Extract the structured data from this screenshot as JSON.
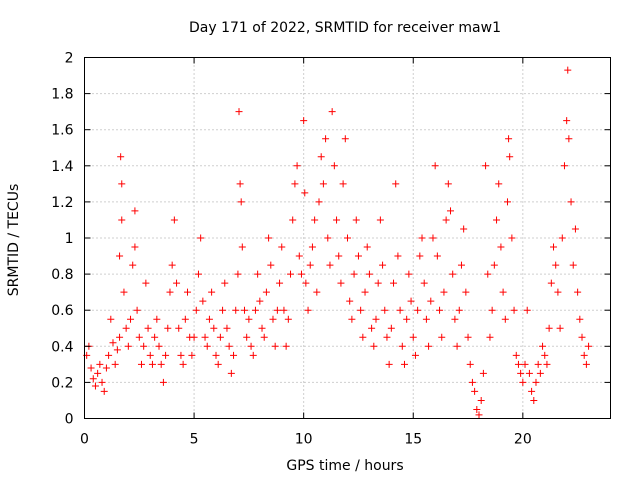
{
  "chart_data": {
    "type": "scatter",
    "title": "Day 171 of 2022, SRMTID for receiver maw1",
    "xlabel": "GPS time / hours",
    "ylabel": "SRMTID / TECUs",
    "xlim": [
      0,
      24
    ],
    "ylim": [
      0,
      2
    ],
    "x_ticks": [
      0,
      5,
      10,
      15,
      20
    ],
    "x_tick_labels": [
      "0",
      "5",
      "10",
      "15",
      "20"
    ],
    "y_ticks": [
      0,
      0.2,
      0.4,
      0.6,
      0.8,
      1,
      1.2,
      1.4,
      1.6,
      1.8,
      2
    ],
    "y_tick_labels": [
      "0",
      "0.2",
      "0.4",
      "0.6",
      "0.8",
      "1",
      "1.2",
      "1.4",
      "1.6",
      "1.8",
      "2"
    ],
    "grid": true,
    "marker": "+",
    "color": "#ff0000",
    "series": [
      {
        "name": "SRMTID",
        "points": [
          [
            0.1,
            0.35
          ],
          [
            0.2,
            0.4
          ],
          [
            0.3,
            0.28
          ],
          [
            0.4,
            0.22
          ],
          [
            0.5,
            0.18
          ],
          [
            0.6,
            0.25
          ],
          [
            0.7,
            0.3
          ],
          [
            0.8,
            0.2
          ],
          [
            0.9,
            0.15
          ],
          [
            1.0,
            0.28
          ],
          [
            1.1,
            0.35
          ],
          [
            1.2,
            0.55
          ],
          [
            1.3,
            0.42
          ],
          [
            1.4,
            0.3
          ],
          [
            1.5,
            0.38
          ],
          [
            1.6,
            0.45
          ],
          [
            1.6,
            0.9
          ],
          [
            1.65,
            1.45
          ],
          [
            1.7,
            1.3
          ],
          [
            1.7,
            1.1
          ],
          [
            1.8,
            0.7
          ],
          [
            1.9,
            0.5
          ],
          [
            2.0,
            0.4
          ],
          [
            2.1,
            0.55
          ],
          [
            2.2,
            0.85
          ],
          [
            2.3,
            1.15
          ],
          [
            2.3,
            0.95
          ],
          [
            2.4,
            0.6
          ],
          [
            2.5,
            0.45
          ],
          [
            2.6,
            0.3
          ],
          [
            2.7,
            0.4
          ],
          [
            2.8,
            0.75
          ],
          [
            2.9,
            0.5
          ],
          [
            3.0,
            0.35
          ],
          [
            3.1,
            0.3
          ],
          [
            3.2,
            0.45
          ],
          [
            3.3,
            0.55
          ],
          [
            3.4,
            0.4
          ],
          [
            3.5,
            0.3
          ],
          [
            3.6,
            0.2
          ],
          [
            3.7,
            0.35
          ],
          [
            3.8,
            0.5
          ],
          [
            3.9,
            0.7
          ],
          [
            4.0,
            0.85
          ],
          [
            4.1,
            1.1
          ],
          [
            4.2,
            0.75
          ],
          [
            4.3,
            0.5
          ],
          [
            4.4,
            0.35
          ],
          [
            4.5,
            0.3
          ],
          [
            4.6,
            0.55
          ],
          [
            4.7,
            0.7
          ],
          [
            4.8,
            0.45
          ],
          [
            4.9,
            0.35
          ],
          [
            5.0,
            0.45
          ],
          [
            5.1,
            0.6
          ],
          [
            5.2,
            0.8
          ],
          [
            5.3,
            1.0
          ],
          [
            5.4,
            0.65
          ],
          [
            5.5,
            0.45
          ],
          [
            5.6,
            0.4
          ],
          [
            5.7,
            0.55
          ],
          [
            5.8,
            0.7
          ],
          [
            5.9,
            0.5
          ],
          [
            6.0,
            0.35
          ],
          [
            6.1,
            0.3
          ],
          [
            6.2,
            0.45
          ],
          [
            6.3,
            0.6
          ],
          [
            6.4,
            0.75
          ],
          [
            6.5,
            0.5
          ],
          [
            6.6,
            0.4
          ],
          [
            6.7,
            0.25
          ],
          [
            6.8,
            0.35
          ],
          [
            6.9,
            0.6
          ],
          [
            7.0,
            0.8
          ],
          [
            7.05,
            1.7
          ],
          [
            7.1,
            1.3
          ],
          [
            7.15,
            1.2
          ],
          [
            7.2,
            0.95
          ],
          [
            7.3,
            0.6
          ],
          [
            7.4,
            0.45
          ],
          [
            7.5,
            0.55
          ],
          [
            7.6,
            0.4
          ],
          [
            7.7,
            0.35
          ],
          [
            7.8,
            0.6
          ],
          [
            7.9,
            0.8
          ],
          [
            8.0,
            0.65
          ],
          [
            8.1,
            0.5
          ],
          [
            8.2,
            0.45
          ],
          [
            8.3,
            0.7
          ],
          [
            8.4,
            1.0
          ],
          [
            8.5,
            0.85
          ],
          [
            8.6,
            0.55
          ],
          [
            8.7,
            0.4
          ],
          [
            8.8,
            0.6
          ],
          [
            8.9,
            0.75
          ],
          [
            9.0,
            0.95
          ],
          [
            9.1,
            0.6
          ],
          [
            9.2,
            0.4
          ],
          [
            9.3,
            0.55
          ],
          [
            9.4,
            0.8
          ],
          [
            9.5,
            1.1
          ],
          [
            9.6,
            1.3
          ],
          [
            9.7,
            1.4
          ],
          [
            9.8,
            0.9
          ],
          [
            9.9,
            0.8
          ],
          [
            10.0,
            1.65
          ],
          [
            10.05,
            1.25
          ],
          [
            10.1,
            0.75
          ],
          [
            10.2,
            0.6
          ],
          [
            10.3,
            0.85
          ],
          [
            10.4,
            0.95
          ],
          [
            10.5,
            1.1
          ],
          [
            10.6,
            0.7
          ],
          [
            10.7,
            1.2
          ],
          [
            10.8,
            1.45
          ],
          [
            10.9,
            1.3
          ],
          [
            11.0,
            1.55
          ],
          [
            11.1,
            1.0
          ],
          [
            11.2,
            0.85
          ],
          [
            11.3,
            1.7
          ],
          [
            11.4,
            1.4
          ],
          [
            11.5,
            1.1
          ],
          [
            11.6,
            0.9
          ],
          [
            11.7,
            0.75
          ],
          [
            11.8,
            1.3
          ],
          [
            11.9,
            1.55
          ],
          [
            12.0,
            1.0
          ],
          [
            12.1,
            0.65
          ],
          [
            12.2,
            0.55
          ],
          [
            12.3,
            0.8
          ],
          [
            12.4,
            1.1
          ],
          [
            12.5,
            0.9
          ],
          [
            12.6,
            0.6
          ],
          [
            12.7,
            0.45
          ],
          [
            12.8,
            0.7
          ],
          [
            12.9,
            0.95
          ],
          [
            13.0,
            0.8
          ],
          [
            13.1,
            0.5
          ],
          [
            13.2,
            0.4
          ],
          [
            13.3,
            0.55
          ],
          [
            13.4,
            0.75
          ],
          [
            13.5,
            1.1
          ],
          [
            13.6,
            0.85
          ],
          [
            13.7,
            0.6
          ],
          [
            13.8,
            0.45
          ],
          [
            13.9,
            0.3
          ],
          [
            14.0,
            0.5
          ],
          [
            14.1,
            0.75
          ],
          [
            14.2,
            1.3
          ],
          [
            14.3,
            0.9
          ],
          [
            14.4,
            0.6
          ],
          [
            14.5,
            0.4
          ],
          [
            14.6,
            0.3
          ],
          [
            14.7,
            0.55
          ],
          [
            14.8,
            0.8
          ],
          [
            14.9,
            0.65
          ],
          [
            15.0,
            0.45
          ],
          [
            15.1,
            0.35
          ],
          [
            15.2,
            0.6
          ],
          [
            15.3,
            0.9
          ],
          [
            15.4,
            1.0
          ],
          [
            15.5,
            0.75
          ],
          [
            15.6,
            0.55
          ],
          [
            15.7,
            0.4
          ],
          [
            15.8,
            0.65
          ],
          [
            15.9,
            1.0
          ],
          [
            16.0,
            1.4
          ],
          [
            16.1,
            0.9
          ],
          [
            16.2,
            0.6
          ],
          [
            16.3,
            0.45
          ],
          [
            16.4,
            0.7
          ],
          [
            16.5,
            1.1
          ],
          [
            16.6,
            1.3
          ],
          [
            16.7,
            1.15
          ],
          [
            16.8,
            0.8
          ],
          [
            16.9,
            0.55
          ],
          [
            17.0,
            0.4
          ],
          [
            17.1,
            0.6
          ],
          [
            17.2,
            0.85
          ],
          [
            17.3,
            1.05
          ],
          [
            17.4,
            0.7
          ],
          [
            17.5,
            0.45
          ],
          [
            17.6,
            0.3
          ],
          [
            17.7,
            0.2
          ],
          [
            17.8,
            0.15
          ],
          [
            17.9,
            0.05
          ],
          [
            18.0,
            0.02
          ],
          [
            18.1,
            0.1
          ],
          [
            18.2,
            0.25
          ],
          [
            18.3,
            1.4
          ],
          [
            18.4,
            0.8
          ],
          [
            18.5,
            0.45
          ],
          [
            18.6,
            0.6
          ],
          [
            18.7,
            0.85
          ],
          [
            18.8,
            1.1
          ],
          [
            18.9,
            1.3
          ],
          [
            19.0,
            0.95
          ],
          [
            19.1,
            0.7
          ],
          [
            19.2,
            0.55
          ],
          [
            19.3,
            1.2
          ],
          [
            19.35,
            1.55
          ],
          [
            19.4,
            1.45
          ],
          [
            19.5,
            1.0
          ],
          [
            19.6,
            0.6
          ],
          [
            19.7,
            0.35
          ],
          [
            19.8,
            0.3
          ],
          [
            19.9,
            0.25
          ],
          [
            20.0,
            0.2
          ],
          [
            20.1,
            0.3
          ],
          [
            20.2,
            0.6
          ],
          [
            20.3,
            0.25
          ],
          [
            20.4,
            0.15
          ],
          [
            20.5,
            0.1
          ],
          [
            20.6,
            0.2
          ],
          [
            20.7,
            0.3
          ],
          [
            20.8,
            0.25
          ],
          [
            20.9,
            0.4
          ],
          [
            21.0,
            0.35
          ],
          [
            21.1,
            0.3
          ],
          [
            21.2,
            0.5
          ],
          [
            21.3,
            0.75
          ],
          [
            21.4,
            0.95
          ],
          [
            21.5,
            0.85
          ],
          [
            21.6,
            0.7
          ],
          [
            21.7,
            0.5
          ],
          [
            21.8,
            1.0
          ],
          [
            21.9,
            1.4
          ],
          [
            22.0,
            1.65
          ],
          [
            22.05,
            1.93
          ],
          [
            22.1,
            1.55
          ],
          [
            22.2,
            1.2
          ],
          [
            22.3,
            0.85
          ],
          [
            22.4,
            1.05
          ],
          [
            22.5,
            0.7
          ],
          [
            22.6,
            0.55
          ],
          [
            22.7,
            0.45
          ],
          [
            22.8,
            0.35
          ],
          [
            22.9,
            0.3
          ],
          [
            23.0,
            0.4
          ]
        ]
      }
    ]
  }
}
